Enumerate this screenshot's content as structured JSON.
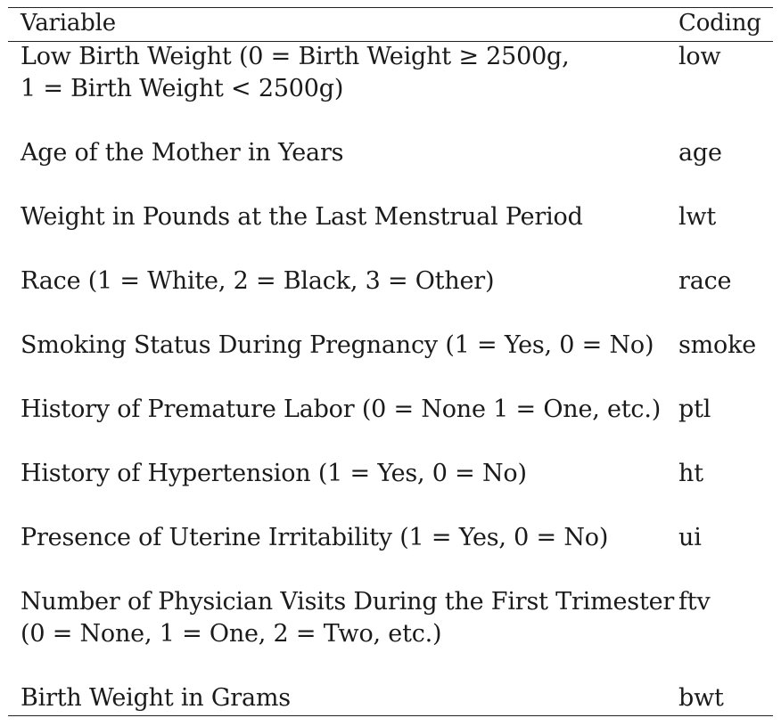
{
  "header": {
    "variable": "Variable",
    "coding": "Coding"
  },
  "rows": [
    {
      "variable": "Low Birth Weight (0 = Birth Weight ≥ 2500g,",
      "variable_line2": "1 = Birth Weight < 2500g)",
      "coding": "low"
    },
    {
      "variable": "Age of the Mother in Years",
      "coding": "age"
    },
    {
      "variable": "Weight in Pounds at the Last Menstrual Period",
      "coding": "lwt"
    },
    {
      "variable": "Race (1 = White, 2 = Black, 3 = Other)",
      "coding": "race"
    },
    {
      "variable": "Smoking Status During Pregnancy (1 = Yes, 0 = No)",
      "coding": "smoke"
    },
    {
      "variable": "History of Premature Labor (0 = None 1 = One, etc.)",
      "coding": "ptl"
    },
    {
      "variable": "History of Hypertension (1 = Yes, 0 = No)",
      "coding": "ht"
    },
    {
      "variable": "Presence of Uterine Irritability (1 = Yes, 0 = No)",
      "coding": "ui"
    },
    {
      "variable": "Number of Physician Visits During the First Trimester",
      "variable_line2": "(0 = None, 1 = One, 2 = Two, etc.)",
      "coding": "ftv"
    },
    {
      "variable": "Birth Weight in Grams",
      "coding": "bwt"
    }
  ]
}
